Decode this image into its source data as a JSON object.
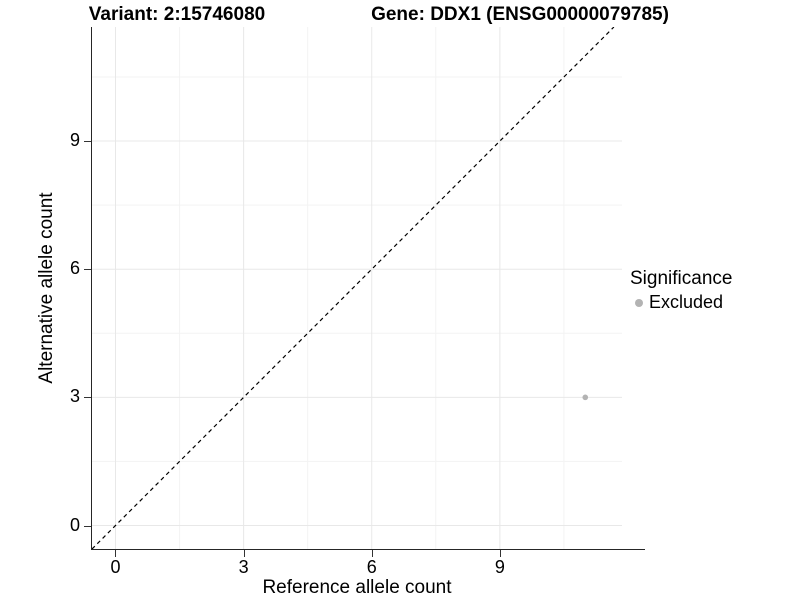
{
  "header": {
    "title_left": "Variant: 2:15746080",
    "title_right": "Gene: DDX1 (ENSG00000079785)"
  },
  "chart_data": {
    "type": "scatter",
    "xlabel": "Reference allele count",
    "ylabel": "Alternative allele count",
    "xlim": [
      -0.55,
      11.86
    ],
    "ylim": [
      -0.55,
      11.67
    ],
    "xticks": [
      0,
      3,
      6,
      9
    ],
    "yticks": [
      0,
      3,
      6,
      9
    ],
    "xminor": [
      1.5,
      4.5,
      7.5,
      10.5
    ],
    "yminor": [
      1.5,
      4.5,
      7.5,
      10.5
    ],
    "grid": "major and minor gridlines, light gray on white",
    "abline": {
      "slope": 1,
      "intercept": 0,
      "linetype": "dashed",
      "color": "#000000"
    },
    "series": [
      {
        "name": "Excluded",
        "color": "#b3b3b3",
        "points": [
          {
            "x": 11,
            "y": 3
          }
        ]
      }
    ],
    "legend": {
      "title": "Significance",
      "position": "right",
      "items": [
        {
          "label": "Excluded",
          "color": "#b3b3b3"
        }
      ]
    }
  },
  "style": {
    "grid_major": "#e8e8e8",
    "grid_minor": "#f3f3f3",
    "axis_line": "#262626",
    "tick_color": "#333333",
    "text_color": "#000000",
    "background": "#ffffff"
  }
}
